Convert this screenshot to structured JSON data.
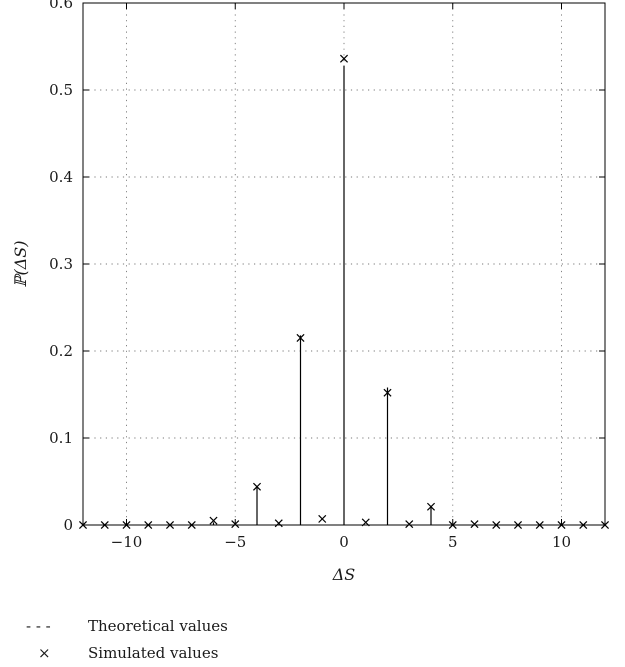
{
  "chart_data": {
    "type": "scatter",
    "title": "",
    "xlabel": "ΔS",
    "ylabel": "ℙ(ΔS)",
    "xlim": [
      -12,
      12
    ],
    "ylim": [
      0,
      0.6
    ],
    "x_ticks": [
      -10,
      -5,
      0,
      5,
      10
    ],
    "x_tick_labels": [
      "−10",
      "−5",
      "0",
      "5",
      "10"
    ],
    "y_ticks": [
      0,
      0.1,
      0.2,
      0.3,
      0.4,
      0.5,
      0.6
    ],
    "y_tick_labels": [
      "0",
      "0.1",
      "0.2",
      "0.3",
      "0.4",
      "0.5",
      "0.6"
    ],
    "grid": true,
    "legend_position": "bottom-left, below the plot",
    "series": [
      {
        "name": "Theoretical values",
        "style": "stem",
        "x": [
          -12,
          -11,
          -10,
          -9,
          -8,
          -7,
          -6,
          -5,
          -4,
          -3,
          -2,
          -1,
          0,
          1,
          2,
          3,
          4,
          5,
          6,
          7,
          8,
          9,
          10,
          11,
          12
        ],
        "y": [
          0,
          0,
          0,
          0,
          0,
          0,
          0.003,
          0,
          0.043,
          0,
          0.218,
          0,
          0.528,
          0,
          0.158,
          0,
          0.022,
          0,
          0,
          0,
          0,
          0,
          0,
          0,
          0
        ]
      },
      {
        "name": "Simulated values",
        "style": "marker-x",
        "x": [
          -12,
          -11,
          -10,
          -9,
          -8,
          -7,
          -6,
          -5,
          -4,
          -3,
          -2,
          -1,
          0,
          1,
          2,
          3,
          4,
          5,
          6,
          7,
          8,
          9,
          10,
          11,
          12
        ],
        "y": [
          0,
          0,
          0,
          0,
          0,
          0,
          0.005,
          0.001,
          0.044,
          0.002,
          0.215,
          0.007,
          0.536,
          0.003,
          0.152,
          0.001,
          0.021,
          0,
          0.001,
          0,
          0,
          0,
          0,
          0,
          0
        ]
      }
    ]
  },
  "legend": {
    "items": [
      {
        "symbol": "- - -",
        "label": "Theoretical values"
      },
      {
        "symbol": "×",
        "label": "Simulated values"
      }
    ]
  }
}
